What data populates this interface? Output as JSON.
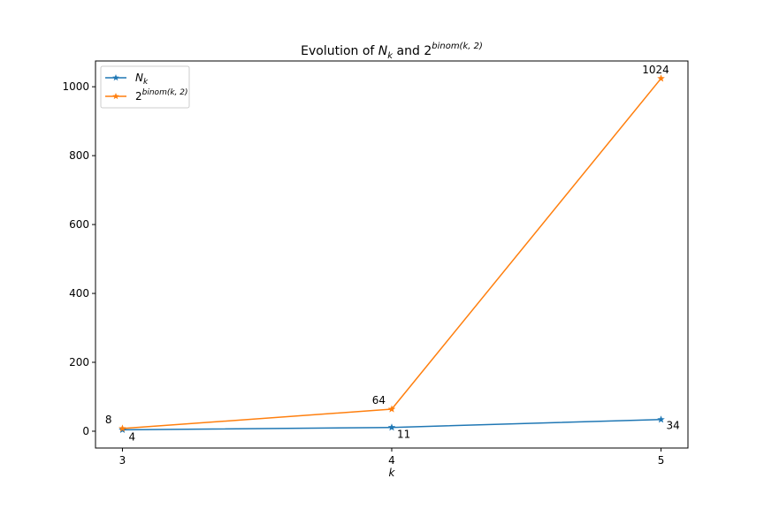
{
  "chart_data": {
    "type": "line",
    "title": {
      "prefix": "Evolution of ",
      "n": "N",
      "n_sub": "k",
      "middle": " and 2",
      "sup": "binom(k, 2)"
    },
    "xlabel": "k",
    "ylabel": "",
    "x": [
      3,
      4,
      5
    ],
    "xlim": [
      2.9,
      5.1
    ],
    "ylim": [
      -48.8,
      1074.8
    ],
    "x_ticks": [
      "3",
      "4",
      "5"
    ],
    "y_ticks": [
      0,
      200,
      400,
      600,
      800,
      1000
    ],
    "y_tick_labels": [
      "0",
      "200",
      "400",
      "600",
      "800",
      "1000"
    ],
    "grid": false,
    "legend_position": "top-left",
    "series": [
      {
        "key": "nk",
        "legend": {
          "base": "N",
          "sub": "k"
        },
        "color": "#1f77b4",
        "marker": "star",
        "values": [
          4,
          11,
          34
        ],
        "labels": [
          "4",
          "11",
          "34"
        ]
      },
      {
        "key": "binom",
        "legend": {
          "base": "2",
          "sup": "binom(k, 2)"
        },
        "color": "#ff7f0e",
        "marker": "star",
        "values": [
          8,
          64,
          1024
        ],
        "labels": [
          "8",
          "64",
          "1024"
        ]
      }
    ]
  }
}
